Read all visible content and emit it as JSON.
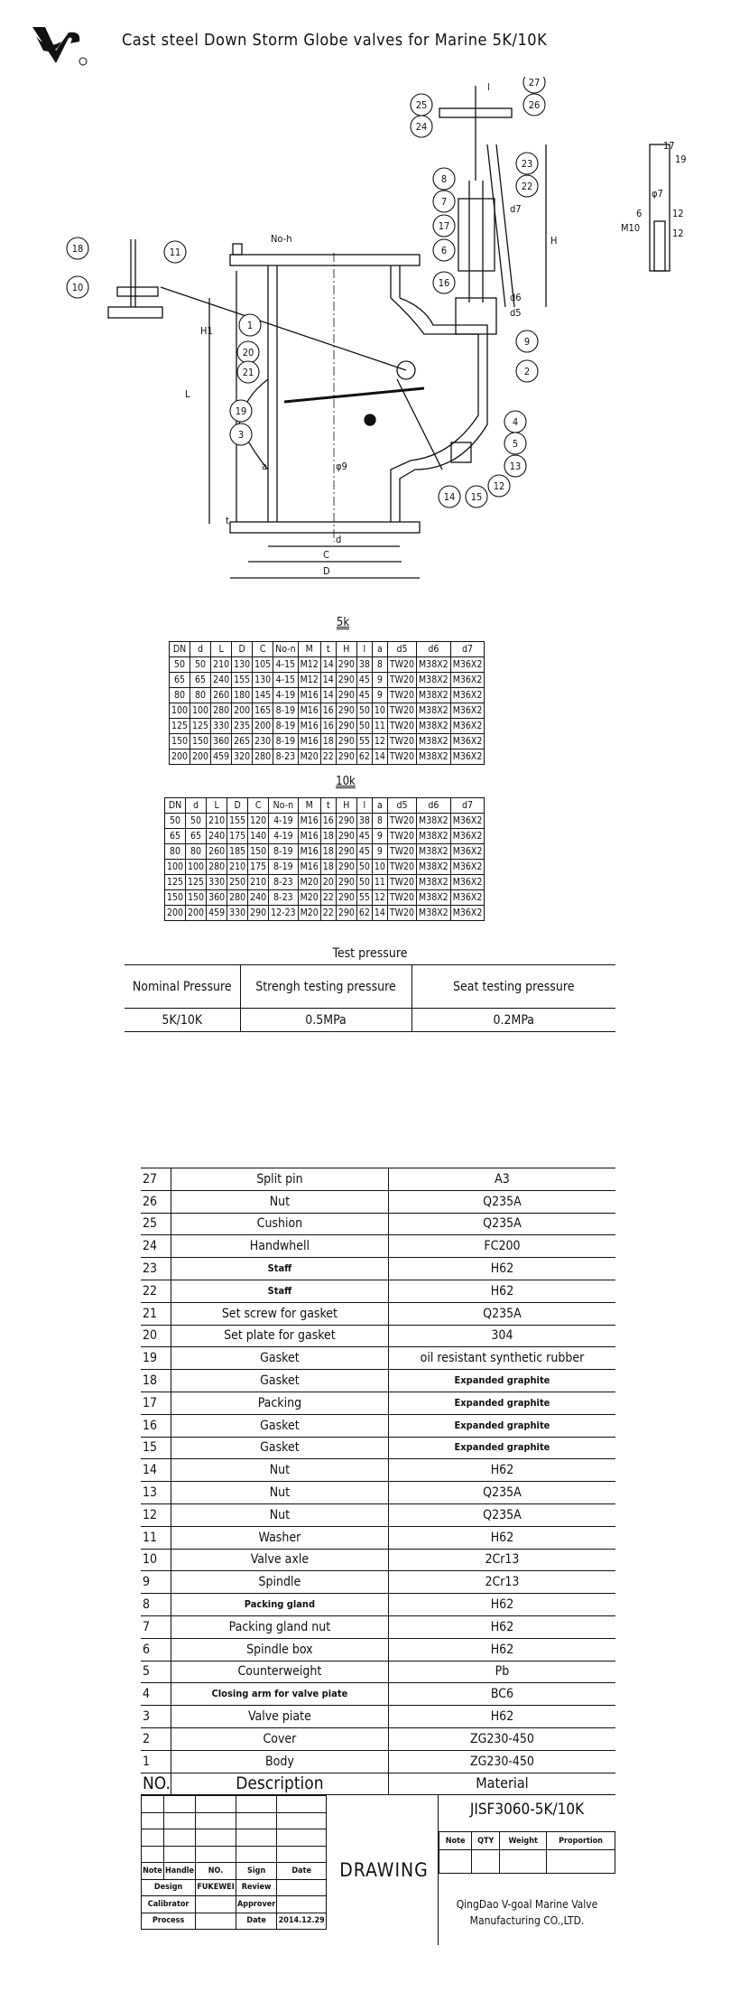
{
  "header": {
    "title": "Cast steel Down Storm Globe valves for Marine 5K/10K",
    "logo_text": "VG"
  },
  "drawing": {
    "callouts": [
      "27",
      "26",
      "25",
      "24",
      "23",
      "22",
      "8",
      "7",
      "17",
      "6",
      "16",
      "9",
      "2",
      "18",
      "11",
      "10",
      "1",
      "20",
      "21",
      "19",
      "3",
      "4",
      "5",
      "13",
      "12",
      "14",
      "15"
    ],
    "dimension_labels": {
      "L": "L",
      "H1": "H1",
      "H": "H",
      "D": "D",
      "C": "C",
      "d": "d",
      "a": "a",
      "t": "t",
      "noh": "No-h",
      "d5": "d5",
      "d6": "d6",
      "d7": "d7",
      "l": "l",
      "phi9": "φ9",
      "M10": "M10",
      "d_6": "6",
      "d_12a": "12",
      "d_12b": "12",
      "phi7": "φ7",
      "s17": "17",
      "s19": "19"
    }
  },
  "tables": {
    "columns": [
      "DN",
      "d",
      "L",
      "D",
      "C",
      "No-n",
      "M",
      "t",
      "H",
      "l",
      "a",
      "d5",
      "d6",
      "d7"
    ],
    "k5": {
      "label": "5k",
      "rows": [
        [
          "50",
          "50",
          "210",
          "130",
          "105",
          "4-15",
          "M12",
          "14",
          "290",
          "38",
          "8",
          "TW20",
          "M38X2",
          "M36X2"
        ],
        [
          "65",
          "65",
          "240",
          "155",
          "130",
          "4-15",
          "M12",
          "14",
          "290",
          "45",
          "9",
          "TW20",
          "M38X2",
          "M36X2"
        ],
        [
          "80",
          "80",
          "260",
          "180",
          "145",
          "4-19",
          "M16",
          "14",
          "290",
          "45",
          "9",
          "TW20",
          "M38X2",
          "M36X2"
        ],
        [
          "100",
          "100",
          "280",
          "200",
          "165",
          "8-19",
          "M16",
          "16",
          "290",
          "50",
          "10",
          "TW20",
          "M38X2",
          "M36X2"
        ],
        [
          "125",
          "125",
          "330",
          "235",
          "200",
          "8-19",
          "M16",
          "16",
          "290",
          "50",
          "11",
          "TW20",
          "M38X2",
          "M36X2"
        ],
        [
          "150",
          "150",
          "360",
          "265",
          "230",
          "8-19",
          "M16",
          "18",
          "290",
          "55",
          "12",
          "TW20",
          "M38X2",
          "M36X2"
        ],
        [
          "200",
          "200",
          "459",
          "320",
          "280",
          "8-23",
          "M20",
          "22",
          "290",
          "62",
          "14",
          "TW20",
          "M38X2",
          "M36X2"
        ]
      ]
    },
    "k10": {
      "label": "10k",
      "rows": [
        [
          "50",
          "50",
          "210",
          "155",
          "120",
          "4-19",
          "M16",
          "16",
          "290",
          "38",
          "8",
          "TW20",
          "M38X2",
          "M36X2"
        ],
        [
          "65",
          "65",
          "240",
          "175",
          "140",
          "4-19",
          "M16",
          "18",
          "290",
          "45",
          "9",
          "TW20",
          "M38X2",
          "M36X2"
        ],
        [
          "80",
          "80",
          "260",
          "185",
          "150",
          "8-19",
          "M16",
          "18",
          "290",
          "45",
          "9",
          "TW20",
          "M38X2",
          "M36X2"
        ],
        [
          "100",
          "100",
          "280",
          "210",
          "175",
          "8-19",
          "M16",
          "18",
          "290",
          "50",
          "10",
          "TW20",
          "M38X2",
          "M36X2"
        ],
        [
          "125",
          "125",
          "330",
          "250",
          "210",
          "8-23",
          "M20",
          "20",
          "290",
          "50",
          "11",
          "TW20",
          "M38X2",
          "M36X2"
        ],
        [
          "150",
          "150",
          "360",
          "280",
          "240",
          "8-23",
          "M20",
          "22",
          "290",
          "55",
          "12",
          "TW20",
          "M38X2",
          "M36X2"
        ],
        [
          "200",
          "200",
          "459",
          "330",
          "290",
          "12-23",
          "M20",
          "22",
          "290",
          "62",
          "14",
          "TW20",
          "M38X2",
          "M36X2"
        ]
      ]
    }
  },
  "test_pressure": {
    "title": "Test pressure",
    "headers": [
      "Nominal Pressure",
      "Strengh testing pressure",
      "Seat testing pressure"
    ],
    "row": [
      "5K/10K",
      "0.5MPa",
      "0.2MPa"
    ]
  },
  "parts": {
    "header": [
      "NO.",
      "Description",
      "Material"
    ],
    "rows": [
      [
        "27",
        "Split pin",
        "A3"
      ],
      [
        "26",
        "Nut",
        "Q235A"
      ],
      [
        "25",
        "Cushion",
        "Q235A"
      ],
      [
        "24",
        "Handwhell",
        "FC200"
      ],
      [
        "23",
        "Staff",
        "H62"
      ],
      [
        "22",
        "Staff",
        "H62"
      ],
      [
        "21",
        "Set screw for gasket",
        "Q235A"
      ],
      [
        "20",
        "Set plate for gasket",
        "304"
      ],
      [
        "19",
        "Gasket",
        "oil resistant synthetic rubber"
      ],
      [
        "18",
        "Gasket",
        "Expanded graphite"
      ],
      [
        "17",
        "Packing",
        "Expanded graphite"
      ],
      [
        "16",
        "Gasket",
        "Expanded graphite"
      ],
      [
        "15",
        "Gasket",
        "Expanded graphite"
      ],
      [
        "14",
        "Nut",
        "H62"
      ],
      [
        "13",
        "Nut",
        "Q235A"
      ],
      [
        "12",
        "Nut",
        "Q235A"
      ],
      [
        "11",
        "Washer",
        "H62"
      ],
      [
        "10",
        "Valve axle",
        "2Cr13"
      ],
      [
        "9",
        "Spindle",
        "2Cr13"
      ],
      [
        "8",
        "Packing gland",
        "H62"
      ],
      [
        "7",
        "Packing gland nut",
        "H62"
      ],
      [
        "6",
        "Spindle box",
        "H62"
      ],
      [
        "5",
        "Counterweight",
        "Pb"
      ],
      [
        "4",
        "Closing arm for valve piate",
        "BC6"
      ],
      [
        "3",
        "Valve piate",
        "H62"
      ],
      [
        "2",
        "Cover",
        "ZG230-450"
      ],
      [
        "1",
        "Body",
        "ZG230-450"
      ]
    ]
  },
  "title_block": {
    "left_headers": [
      "Note",
      "Handle",
      "NO.",
      "Sign",
      "Date"
    ],
    "design": "Design",
    "designer": "FUKEWEI",
    "review": "Review",
    "calibrator": "Calibrator",
    "approver": "Approver",
    "process": "Process",
    "date_label": "Date",
    "date": "2014.12.29",
    "drawing": "DRAWING",
    "code": "JISF3060-5K/10K",
    "right_headers": [
      "Note",
      "QTY",
      "Weight",
      "Proportion"
    ],
    "company_line1": "QingDao V-goal Marine Valve",
    "company_line2": "Manufacturing CO.,LTD."
  }
}
